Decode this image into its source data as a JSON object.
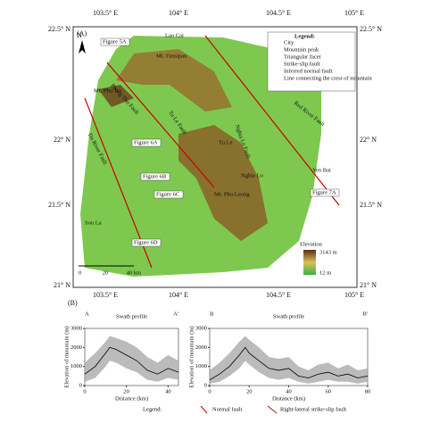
{
  "map": {
    "panel": "(A)",
    "north": "N",
    "lat_left": [
      "22.5° N",
      "22° N",
      "21.5° N",
      "21° N"
    ],
    "lat_right": [
      "22.5° N",
      "22° N",
      "21.5° N",
      "21° N"
    ],
    "lon_top": [
      "103.5° E",
      "104° E",
      "104.5° E",
      "105° E"
    ],
    "lon_bottom": [
      "103.5° E",
      "104° E",
      "104.5° E",
      "105° E"
    ],
    "legend": {
      "title": "Legend:",
      "items": [
        "City",
        "Mountain peak",
        "Triangular facet",
        "Strike-slip fault",
        "Inferred normal fault",
        "Line connecting the crest of mountain"
      ]
    },
    "places": [
      "Lao Cai",
      "Mt. Fansipan",
      "Mt. Phu Tra",
      "Tu Le",
      "Nghia Lo",
      "Mt. Phu Luong",
      "Yen Bai",
      "Son La"
    ],
    "faults": [
      "Red River Fault",
      "Da River Fault",
      "Phong Tho Fault",
      "Tu Le Fault",
      "Nghia Lo Fault"
    ],
    "figures": [
      "Figure 5A",
      "Figure 6A",
      "Figure 6B",
      "Figure 6C",
      "Figure 7A",
      "Figure 6D"
    ],
    "scale": [
      "0",
      "20",
      "40 km"
    ],
    "elevation": {
      "title": "Elevation",
      "max": "3143 m",
      "min": "12 m"
    }
  },
  "profiles": {
    "panel": "(B)",
    "ylabel": "Elevation of mountain (m)",
    "xlabel": "Distance (km)",
    "charts": [
      {
        "start": "A",
        "title": "Swath profile",
        "end": "A'",
        "xlim": [
          0,
          45
        ],
        "xticks": [
          0,
          20,
          40
        ],
        "ylim": [
          0,
          3000
        ],
        "yticks": [
          0,
          1000,
          2000,
          3000
        ],
        "x": [
          0,
          5,
          10,
          12,
          15,
          20,
          25,
          30,
          35,
          40,
          45
        ],
        "mean": [
          600,
          1000,
          1700,
          2000,
          1900,
          1600,
          1300,
          800,
          600,
          900,
          700
        ],
        "max": [
          1200,
          1700,
          2300,
          2600,
          2500,
          2300,
          2000,
          1500,
          1200,
          1600,
          1300
        ],
        "min": [
          200,
          400,
          1000,
          1300,
          1200,
          900,
          700,
          300,
          200,
          400,
          300
        ]
      },
      {
        "start": "B",
        "title": "Swath profile",
        "end": "B'",
        "xlim": [
          0,
          80
        ],
        "xticks": [
          0,
          20,
          40,
          60,
          80
        ],
        "ylim": [
          0,
          3000
        ],
        "yticks": [
          0,
          1000,
          2000,
          3000
        ],
        "x": [
          0,
          5,
          10,
          15,
          18,
          20,
          25,
          30,
          35,
          40,
          45,
          50,
          55,
          60,
          65,
          70,
          75,
          80
        ],
        "mean": [
          300,
          600,
          1000,
          1600,
          2000,
          1700,
          1300,
          900,
          800,
          900,
          500,
          400,
          600,
          700,
          500,
          600,
          400,
          500
        ],
        "max": [
          800,
          1200,
          1700,
          2300,
          2600,
          2400,
          2000,
          1500,
          1400,
          1500,
          1000,
          800,
          1100,
          1200,
          900,
          1100,
          800,
          900
        ],
        "min": [
          100,
          200,
          500,
          900,
          1300,
          1100,
          700,
          400,
          300,
          400,
          200,
          100,
          200,
          300,
          200,
          200,
          100,
          200
        ]
      }
    ],
    "legend": {
      "title": "Legend:",
      "items": [
        "Normal fault",
        "Right-lateral strike-slip fault"
      ]
    }
  }
}
